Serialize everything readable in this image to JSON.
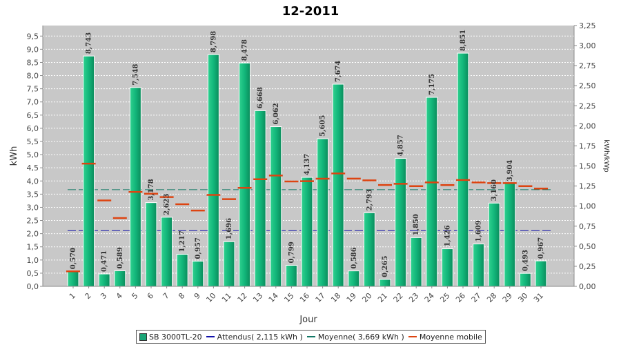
{
  "chart_data": {
    "type": "bar",
    "title": "12-2011",
    "xlabel": "Jour",
    "ylabel": "kWh",
    "ylabel_right": "kWh/kWp",
    "ylim": [
      0,
      9.9
    ],
    "y2lim": [
      0,
      3.25
    ],
    "yticks": [
      "0,0",
      "0,5",
      "1,0",
      "1,5",
      "2,0",
      "2,5",
      "3,0",
      "3,5",
      "4,0",
      "4,5",
      "5,0",
      "5,5",
      "6,0",
      "6,5",
      "7,0",
      "7,5",
      "8,0",
      "8,5",
      "9,0",
      "9,5"
    ],
    "y2ticks": [
      "0,00",
      "0,25",
      "0,50",
      "0,75",
      "1,00",
      "1,25",
      "1,50",
      "1,75",
      "2,00",
      "2,25",
      "2,50",
      "2,75",
      "3,00",
      "3,25"
    ],
    "categories": [
      "1",
      "2",
      "3",
      "4",
      "5",
      "6",
      "7",
      "8",
      "9",
      "10",
      "11",
      "12",
      "13",
      "14",
      "15",
      "16",
      "17",
      "18",
      "19",
      "20",
      "21",
      "22",
      "23",
      "24",
      "25",
      "26",
      "27",
      "28",
      "29",
      "30",
      "31"
    ],
    "series": [
      {
        "name": "SB 3000TL-20",
        "values": [
          0.57,
          8.743,
          0.471,
          0.589,
          7.548,
          3.178,
          2.623,
          1.217,
          0.957,
          8.798,
          1.696,
          8.478,
          6.668,
          6.062,
          0.799,
          4.137,
          5.605,
          7.674,
          0.586,
          2.793,
          0.265,
          4.857,
          1.85,
          7.175,
          1.426,
          8.851,
          1.609,
          3.16,
          3.904,
          0.493,
          0.967
        ],
        "labels": [
          "0,570",
          "8,743",
          "0,471",
          "0,589",
          "7,548",
          "3,178",
          "2,623",
          "1,217",
          "0,957",
          "8,798",
          "1,696",
          "8,478",
          "6,668",
          "6,062",
          "0,799",
          "4,137",
          "5,605",
          "7,674",
          "0,586",
          "2,793",
          "0,265",
          "4,857",
          "1,850",
          "7,175",
          "1,426",
          "8,851",
          "1,609",
          "3,160",
          "3,904",
          "0,493",
          "0,967"
        ],
        "color": "#1aa577"
      },
      {
        "name": "Moyenne mobile",
        "values": [
          0.57,
          4.657,
          3.261,
          2.593,
          3.584,
          3.516,
          3.389,
          3.118,
          2.878,
          3.47,
          3.309,
          3.74,
          4.065,
          4.208,
          3.981,
          3.991,
          4.086,
          4.285,
          4.09,
          4.025,
          3.846,
          3.892,
          3.803,
          3.944,
          3.843,
          4.036,
          3.946,
          3.918,
          3.918,
          3.803,
          3.711
        ],
        "color": "#dd4411"
      }
    ],
    "reference_lines": [
      {
        "name": "Attendus( 2,115 kWh )",
        "value": 2.115,
        "color": "#1111aa"
      },
      {
        "name": "Moyenne( 3,669 kWh )",
        "value": 3.669,
        "color": "#117766"
      }
    ],
    "grid": true,
    "legend_position": "bottom"
  }
}
